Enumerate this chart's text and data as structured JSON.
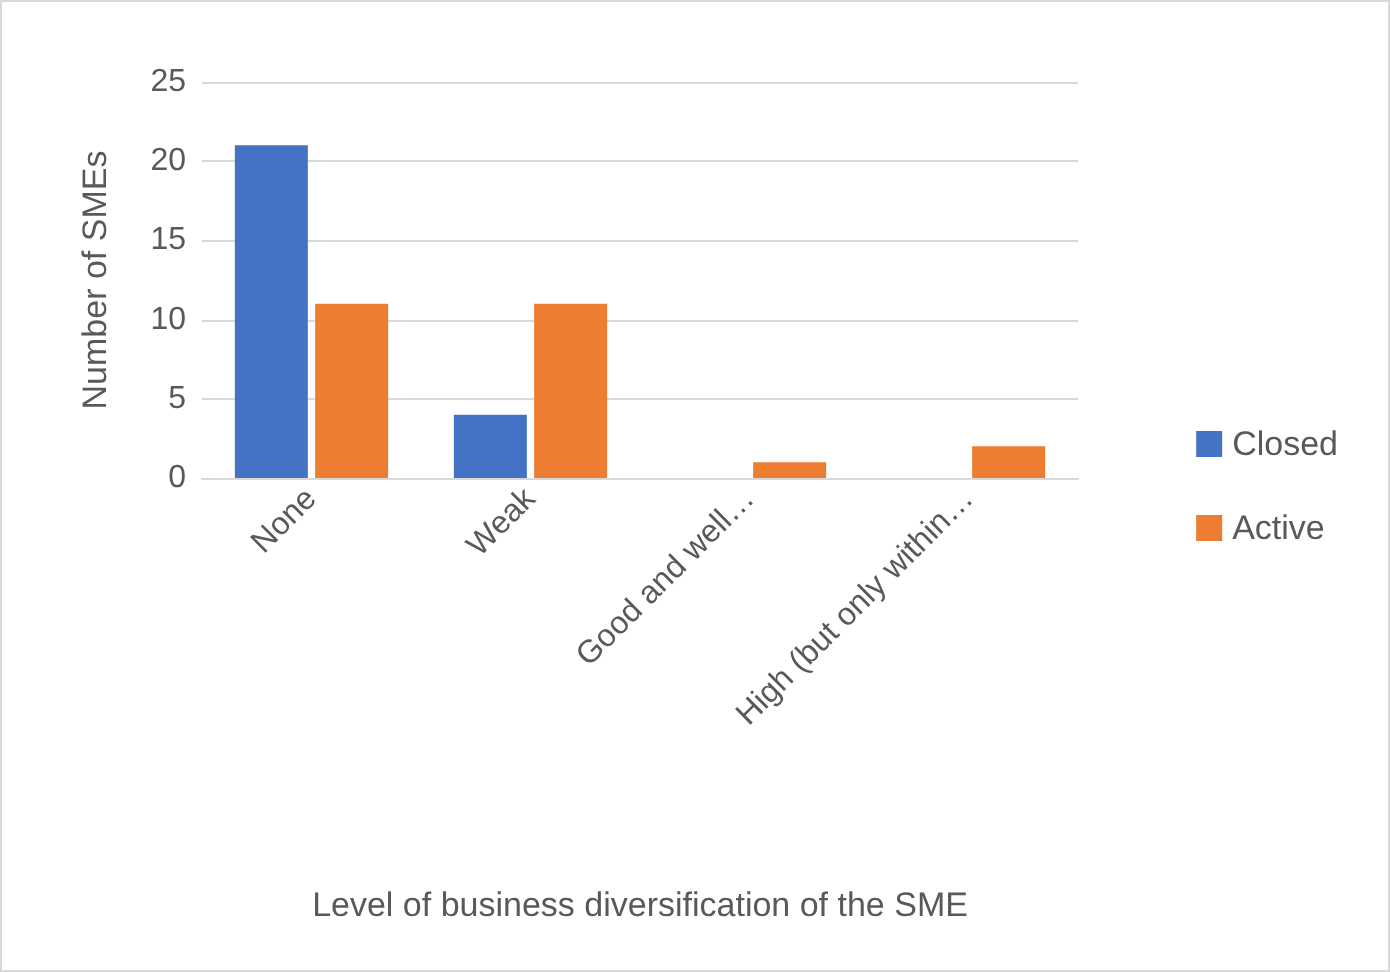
{
  "chart_data": {
    "type": "bar",
    "xlabel": "Level of business diversification of the SME",
    "ylabel": "Number of SMEs",
    "categories": [
      "None",
      "Weak",
      "Good and well…",
      "High (but only within…"
    ],
    "series": [
      {
        "name": "Closed",
        "color": "#4472c4",
        "values": [
          21,
          4,
          0,
          0
        ]
      },
      {
        "name": "Active",
        "color": "#ed7d31",
        "values": [
          11,
          11,
          1,
          2
        ]
      }
    ],
    "ylim": [
      0,
      25
    ],
    "yticks": [
      0,
      5,
      10,
      15,
      20,
      25
    ],
    "grid": "y",
    "legend": "right"
  }
}
